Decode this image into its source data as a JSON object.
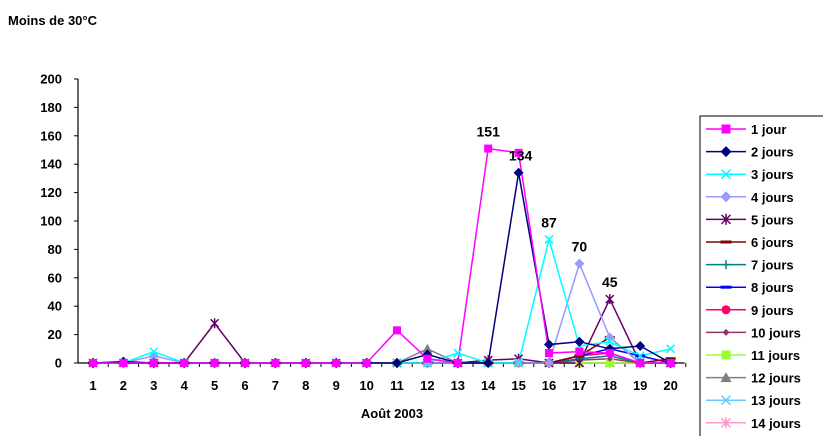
{
  "chart_data": {
    "type": "line",
    "title": "Moins de 30°C",
    "xlabel": "Août 2003",
    "ylabel": "",
    "x": [
      1,
      2,
      3,
      4,
      5,
      6,
      7,
      8,
      9,
      10,
      11,
      12,
      13,
      14,
      15,
      16,
      17,
      18,
      19,
      20
    ],
    "ylim": [
      0,
      200
    ],
    "yticks": [
      0,
      20,
      40,
      60,
      80,
      100,
      120,
      140,
      160,
      180,
      200
    ],
    "grid": false,
    "legend": "right",
    "annotations": [
      {
        "x": 14,
        "y": 151,
        "text": "151"
      },
      {
        "x": 15,
        "y": 134,
        "text": "134"
      },
      {
        "x": 16,
        "y": 87,
        "text": "87"
      },
      {
        "x": 17,
        "y": 70,
        "text": "70"
      },
      {
        "x": 18,
        "y": 45,
        "text": "45"
      }
    ],
    "series": [
      {
        "name": "1 jour",
        "color": "#ff00ff",
        "marker": "square",
        "values": [
          0,
          0,
          0,
          0,
          0,
          0,
          0,
          0,
          0,
          0,
          23,
          3,
          0,
          151,
          148,
          7,
          8,
          7,
          0,
          0
        ]
      },
      {
        "name": "2 jours",
        "color": "#000080",
        "marker": "diamond",
        "values": [
          0,
          1,
          0,
          0,
          0,
          0,
          0,
          0,
          0,
          0,
          0,
          6,
          0,
          0,
          134,
          13,
          15,
          10,
          12,
          0
        ]
      },
      {
        "name": "3 jours",
        "color": "#00ffff",
        "marker": "x",
        "values": [
          0,
          0,
          8,
          0,
          0,
          0,
          0,
          0,
          0,
          0,
          0,
          0,
          7,
          0,
          0,
          87,
          12,
          15,
          5,
          10
        ]
      },
      {
        "name": "4 jours",
        "color": "#9999ff",
        "marker": "diamond",
        "values": [
          0,
          0,
          5,
          0,
          0,
          0,
          0,
          0,
          0,
          0,
          0,
          0,
          0,
          0,
          0,
          0,
          70,
          18,
          0,
          0
        ]
      },
      {
        "name": "5 jours",
        "color": "#660066",
        "marker": "star",
        "values": [
          0,
          0,
          0,
          0,
          28,
          0,
          0,
          0,
          0,
          0,
          0,
          0,
          0,
          2,
          3,
          0,
          0,
          45,
          0,
          0
        ]
      },
      {
        "name": "6 jours",
        "color": "#800000",
        "marker": "dash",
        "values": [
          0,
          0,
          0,
          0,
          0,
          0,
          0,
          0,
          0,
          0,
          0,
          0,
          0,
          0,
          0,
          0,
          5,
          18,
          0,
          3
        ]
      },
      {
        "name": "7 jours",
        "color": "#008080",
        "marker": "plus",
        "values": [
          0,
          0,
          0,
          0,
          0,
          0,
          0,
          0,
          0,
          0,
          0,
          0,
          0,
          0,
          0,
          0,
          3,
          5,
          0,
          0
        ]
      },
      {
        "name": "8 jours",
        "color": "#0000ff",
        "marker": "dash",
        "values": [
          0,
          0,
          0,
          0,
          0,
          0,
          0,
          0,
          0,
          0,
          0,
          0,
          0,
          0,
          0,
          0,
          5,
          10,
          5,
          0
        ]
      },
      {
        "name": "9 jours",
        "color": "#ff0066",
        "marker": "circle",
        "values": [
          0,
          0,
          0,
          0,
          0,
          0,
          0,
          0,
          0,
          0,
          0,
          0,
          0,
          0,
          0,
          0,
          5,
          7,
          0,
          0
        ]
      },
      {
        "name": "10 jours",
        "color": "#993366",
        "marker": "smalldiamond",
        "values": [
          0,
          0,
          0,
          0,
          0,
          0,
          0,
          0,
          0,
          0,
          0,
          0,
          0,
          0,
          0,
          0,
          2,
          3,
          0,
          0
        ]
      },
      {
        "name": "11 jours",
        "color": "#99ff33",
        "marker": "square",
        "values": [
          0,
          0,
          0,
          0,
          0,
          0,
          0,
          0,
          0,
          0,
          0,
          0,
          0,
          0,
          0,
          0,
          0,
          0,
          0,
          0
        ]
      },
      {
        "name": "12 jours",
        "color": "#808080",
        "marker": "triangle",
        "values": [
          0,
          0,
          0,
          0,
          0,
          0,
          0,
          0,
          0,
          0,
          0,
          10,
          0,
          0,
          0,
          0,
          0,
          0,
          0,
          0
        ]
      },
      {
        "name": "13 jours",
        "color": "#66ccff",
        "marker": "x",
        "values": [
          0,
          0,
          0,
          0,
          0,
          0,
          0,
          0,
          0,
          0,
          0,
          0,
          0,
          0,
          0,
          0,
          0,
          0,
          0,
          0
        ]
      },
      {
        "name": "14 jours",
        "color": "#ff99cc",
        "marker": "star",
        "values": [
          0,
          0,
          0,
          0,
          0,
          0,
          0,
          0,
          0,
          0,
          0,
          0,
          0,
          0,
          0,
          0,
          0,
          0,
          0,
          0
        ]
      }
    ]
  }
}
